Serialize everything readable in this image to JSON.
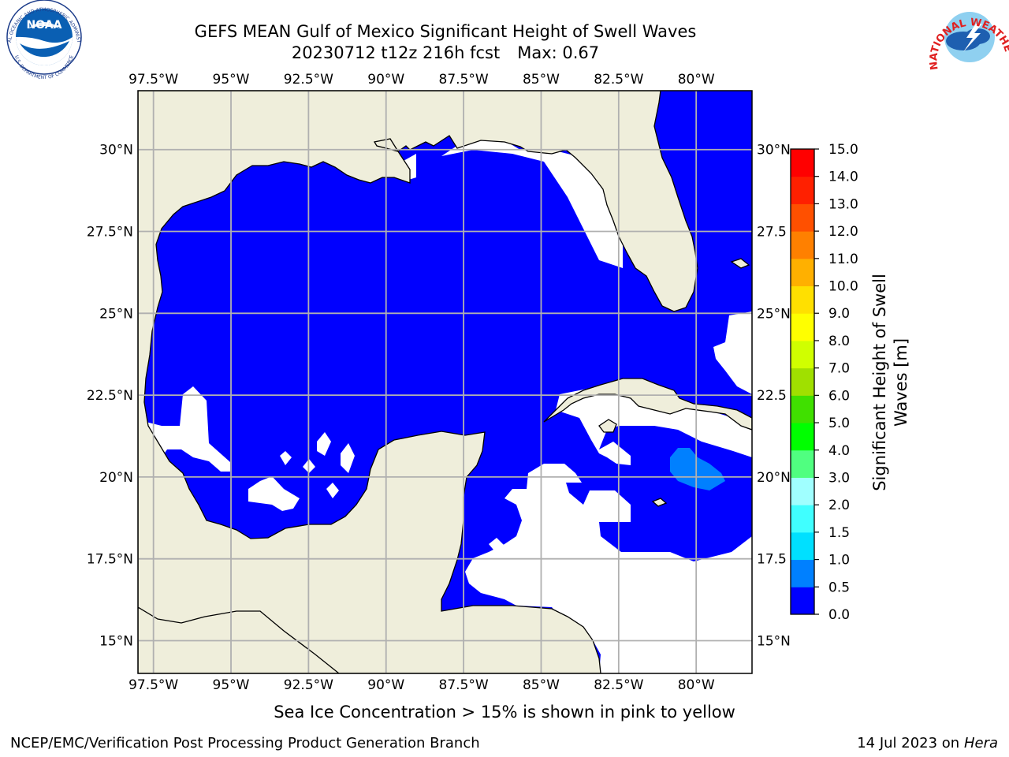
{
  "title": {
    "line1": "GEFS MEAN Gulf of Mexico Significant Height of Swell Waves",
    "line2_run": "20230712 t12z 216h fcst",
    "line2_max": "Max: 0.67"
  },
  "logos": {
    "left": "noaa-logo",
    "right": "nws-logo",
    "left_text_top": "NATIONAL OCEANIC AND ATMOSPHERIC ADMINISTRATION",
    "left_text_bottom": "U.S. DEPARTMENT OF COMMERCE",
    "left_center": "NOAA",
    "right_text": "NATIONAL WEATHER SERVICE"
  },
  "map": {
    "lon_range": [
      -98.0,
      -78.2
    ],
    "lat_range": [
      14.0,
      31.8
    ],
    "lon_labels": [
      "97.5°W",
      "95°W",
      "92.5°W",
      "90°W",
      "87.5°W",
      "85°W",
      "82.5°W",
      "80°W"
    ],
    "lon_values": [
      -97.5,
      -95,
      -92.5,
      -90,
      -87.5,
      -85,
      -82.5,
      -80
    ],
    "lat_labels_left": [
      "30°N",
      "27.5°N",
      "25°N",
      "22.5°N",
      "20°N",
      "17.5°N",
      "15°N"
    ],
    "lat_labels_right": [
      "30°N",
      "27.5",
      "25°N",
      "22.5",
      "20°N",
      "17.5",
      "15°N"
    ],
    "lat_values": [
      30,
      27.5,
      25,
      22.5,
      20,
      17.5,
      15
    ],
    "colors": {
      "land": "#efeedb",
      "ocean_0_0_5": "#0000ff",
      "ocean_0_5_1_0": "#0080ff",
      "no_data": "#ffffff",
      "grid": "#b0b0b0",
      "coast": "#000000"
    }
  },
  "colorbar": {
    "title_line1": "Significant Height of Swell",
    "title_line2": "Waves [m]",
    "levels": [
      "0.0",
      "0.5",
      "1.0",
      "1.5",
      "2.0",
      "3.0",
      "4.0",
      "5.0",
      "6.0",
      "7.0",
      "8.0",
      "9.0",
      "10.0",
      "11.0",
      "12.0",
      "13.0",
      "14.0",
      "15.0"
    ],
    "colors": [
      "#0000ff",
      "#0080ff",
      "#00e0ff",
      "#40ffff",
      "#a0ffff",
      "#50ff80",
      "#00ff00",
      "#40e000",
      "#a0e000",
      "#d0ff00",
      "#ffff00",
      "#ffe000",
      "#ffb000",
      "#ff8000",
      "#ff5000",
      "#ff2000",
      "#ff0000"
    ]
  },
  "footer": {
    "caption": "Sea Ice Concentration > 15% is shown in pink to yellow",
    "credit": "NCEP/EMC/Verification Post Processing Product Generation Branch",
    "date": "14 Jul 2023 on",
    "machine": "Hera"
  }
}
